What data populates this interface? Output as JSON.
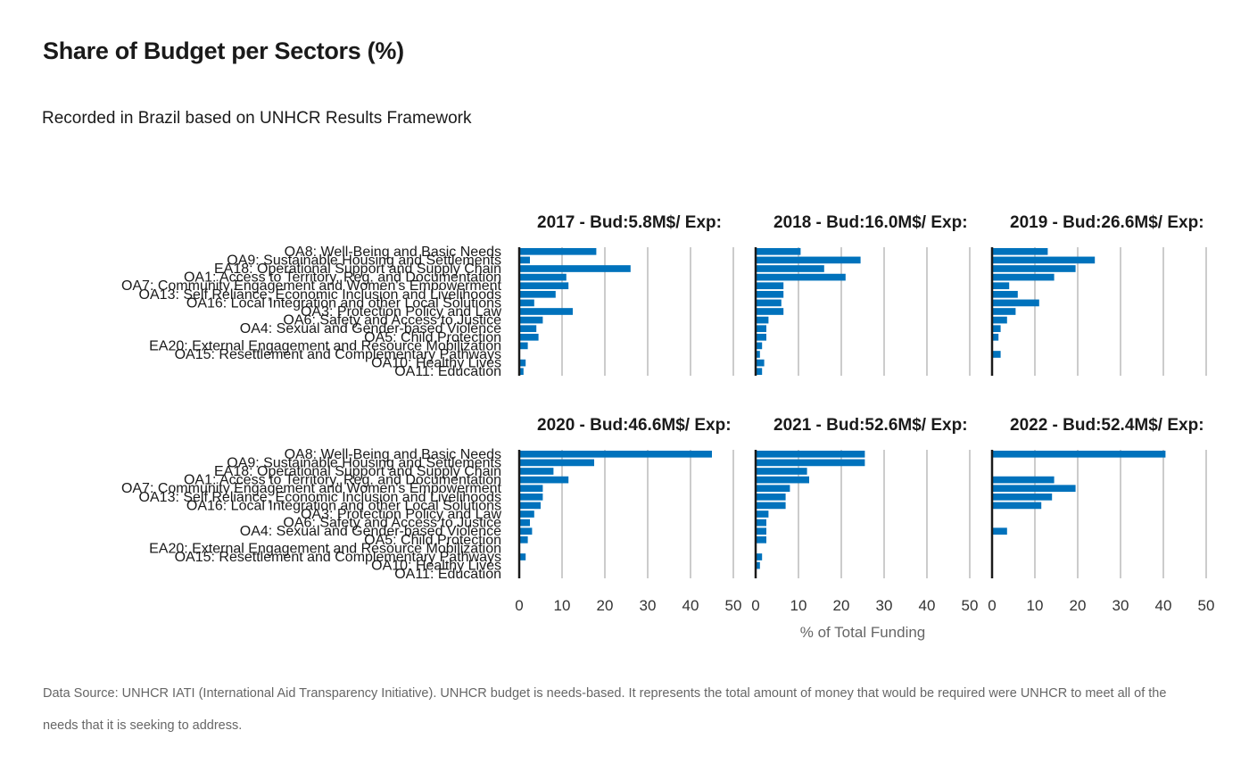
{
  "title": "Share of Budget per Sectors (%)",
  "subtitle": "Recorded in Brazil based on UNHCR Results Framework",
  "caption": "Data Source: UNHCR IATI (International Aid Transparency Initiative). UNHCR budget is needs-based. It represents the total amount of money that would be required were UNHCR to meet all of the needs that it is seeking to address.",
  "colors": {
    "bar": "#0072BC",
    "grid": "#cccccc",
    "axis": "#1a1a1a"
  },
  "chart_data": {
    "type": "bar",
    "orientation": "horizontal",
    "facets": "2x3",
    "xlabel": "% of Total Funding",
    "xlim": [
      0,
      50
    ],
    "xticks": [
      0,
      10,
      20,
      30,
      40,
      50
    ],
    "grid": "vertical",
    "categories": [
      "OA8: Well-Being and Basic Needs",
      "OA9: Sustainable Housing and Settlements",
      "EA18: Operational Support and Supply Chain",
      "OA1: Access to Territory, Reg. and Documentation",
      "OA7: Community Engagement and Women's Empowerment",
      "OA13: Self Reliance, Economic Inclusion and Livelihoods",
      "OA16: Local Integration and other Local Solutions",
      "OA3: Protection Policy and Law",
      "OA6: Safety and Access to Justice",
      "OA4: Sexual and Gender-based Violence",
      "OA5: Child Protection",
      "EA20: External Engagement and Resource Mobilization",
      "OA15: Resettlement and Complementary Pathways",
      "OA10: Healthy Lives",
      "OA11: Education"
    ],
    "panels": [
      {
        "title": "2017 - Bud:5.8M$/ Exp:",
        "values": [
          18,
          2.5,
          26,
          11,
          11.5,
          8.5,
          3.5,
          12.5,
          5.5,
          4,
          4.5,
          2,
          0,
          1.5,
          1
        ]
      },
      {
        "title": "2018 - Bud:16.0M$/ Exp:",
        "values": [
          10.5,
          24.5,
          16,
          21,
          6.5,
          6.5,
          6,
          6.5,
          3,
          2.5,
          2.5,
          1.5,
          1,
          2,
          1.5
        ]
      },
      {
        "title": "2019 - Bud:26.6M$/ Exp:",
        "values": [
          13,
          24,
          19.5,
          14.5,
          4,
          6,
          11,
          5.5,
          3.5,
          2,
          1.5,
          0,
          2,
          0,
          0
        ]
      },
      {
        "title": "2020 - Bud:46.6M$/ Exp:",
        "values": [
          45,
          17.5,
          8,
          11.5,
          5.5,
          5.5,
          5,
          3.5,
          2.5,
          3,
          2,
          0,
          1.5,
          0,
          0
        ]
      },
      {
        "title": "2021 - Bud:52.6M$/ Exp:",
        "values": [
          25.5,
          25.5,
          12,
          12.5,
          8,
          7,
          7,
          3,
          2.5,
          2.5,
          2.5,
          0,
          1.5,
          1,
          0
        ]
      },
      {
        "title": "2022 - Bud:52.4M$/ Exp:",
        "values": [
          40.5,
          0,
          0,
          14.5,
          19.5,
          14,
          11.5,
          0,
          0,
          3.5,
          0,
          0,
          0,
          0,
          0
        ]
      }
    ]
  }
}
